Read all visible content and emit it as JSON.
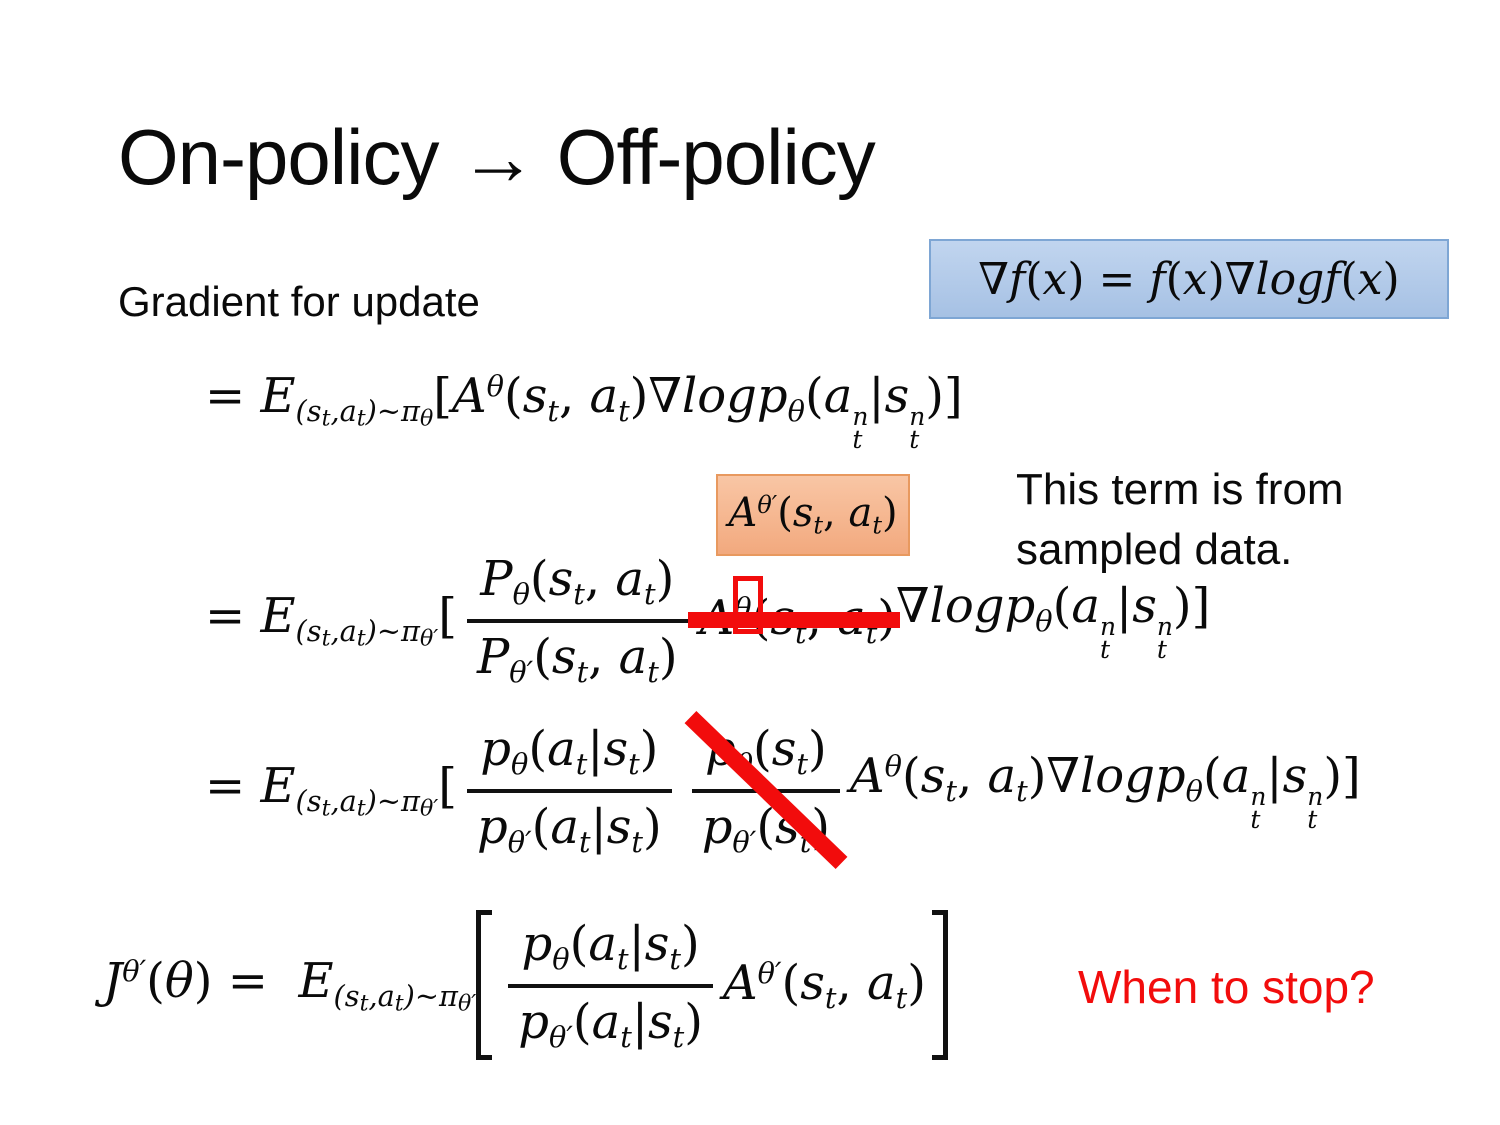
{
  "slide": {
    "title": "On-policy → Off-policy",
    "lead_in": "Gradient for update",
    "question": "When to stop?"
  },
  "note": {
    "line1": "This term is from",
    "line2": "sampled data."
  },
  "colors": {
    "accent_red": "#f20c0c",
    "blue_fill_top": "#c1d5ef",
    "blue_fill_bottom": "#a6c1e4",
    "blue_border": "#7ea6d4",
    "orange_fill_top": "#f9c6a5",
    "orange_fill_bottom": "#f2a97e",
    "orange_border": "#e8995f",
    "text_color": "#0a0a0a"
  },
  "identity_box": {
    "math": [
      [
        "i",
        "∇"
      ],
      [
        "i",
        "f"
      ],
      [
        "u",
        "("
      ],
      [
        "i",
        "x"
      ],
      [
        "u",
        ") = "
      ],
      [
        "i",
        "f"
      ],
      [
        "u",
        "("
      ],
      [
        "i",
        "x"
      ],
      [
        "u",
        ")"
      ],
      [
        "i",
        "∇"
      ],
      [
        "i",
        "logf"
      ],
      [
        "u",
        "("
      ],
      [
        "i",
        "x"
      ],
      [
        "u",
        ")"
      ]
    ]
  },
  "advantage_box": {
    "math": [
      [
        "i",
        "A"
      ],
      [
        "sup",
        "θ′"
      ],
      [
        "u",
        "("
      ],
      [
        "i",
        "s"
      ],
      [
        "sub",
        "t"
      ],
      [
        "u",
        ", "
      ],
      [
        "i",
        "a"
      ],
      [
        "sub",
        "t"
      ],
      [
        "u",
        ")"
      ]
    ]
  },
  "eq1": {
    "math": [
      [
        "u",
        "= "
      ],
      [
        "i",
        "E"
      ],
      [
        "sub",
        "("
      ],
      [
        "sub",
        "s"
      ],
      [
        "ssub",
        "t"
      ],
      [
        "sub",
        ",a"
      ],
      [
        "ssub",
        "t"
      ],
      [
        "sub",
        ")~"
      ],
      [
        "sub",
        "π"
      ],
      [
        "ssub",
        "θ"
      ],
      [
        "u",
        "["
      ],
      [
        "i",
        "A"
      ],
      [
        "sup",
        "θ"
      ],
      [
        "u",
        "("
      ],
      [
        "i",
        "s"
      ],
      [
        "sub",
        "t"
      ],
      [
        "u",
        ", "
      ],
      [
        "i",
        "a"
      ],
      [
        "sub",
        "t"
      ],
      [
        "u",
        ")"
      ],
      [
        "i",
        "∇"
      ],
      [
        "i",
        "logp"
      ],
      [
        "sub",
        "θ"
      ],
      [
        "u",
        "("
      ],
      [
        "i",
        "a"
      ],
      [
        "st",
        "n,t"
      ],
      [
        "u",
        "|"
      ],
      [
        "i",
        "s"
      ],
      [
        "st",
        "n,t"
      ],
      [
        "u",
        ")]"
      ]
    ]
  },
  "eq2": {
    "lead": [
      [
        "u",
        "= "
      ],
      [
        "i",
        "E"
      ],
      [
        "sub",
        "("
      ],
      [
        "sub",
        "s"
      ],
      [
        "ssub",
        "t"
      ],
      [
        "sub",
        ",a"
      ],
      [
        "ssub",
        "t"
      ],
      [
        "sub",
        ")~"
      ],
      [
        "sub",
        "π"
      ],
      [
        "ssub",
        "θ′"
      ],
      [
        "u",
        "["
      ]
    ],
    "frac_num": [
      [
        "i",
        "P"
      ],
      [
        "sub",
        "θ"
      ],
      [
        "u",
        "("
      ],
      [
        "i",
        "s"
      ],
      [
        "sub",
        "t"
      ],
      [
        "u",
        ", "
      ],
      [
        "i",
        "a"
      ],
      [
        "sub",
        "t"
      ],
      [
        "u",
        ")"
      ]
    ],
    "frac_den": [
      [
        "i",
        "P"
      ],
      [
        "sub",
        "θ′"
      ],
      [
        "u",
        "("
      ],
      [
        "i",
        "s"
      ],
      [
        "sub",
        "t"
      ],
      [
        "u",
        ", "
      ],
      [
        "i",
        "a"
      ],
      [
        "sub",
        "t"
      ],
      [
        "u",
        ")"
      ]
    ],
    "struck": [
      [
        "i",
        "A"
      ],
      [
        "sup",
        "θ"
      ],
      [
        "u",
        "("
      ],
      [
        "i",
        "s"
      ],
      [
        "sub",
        "t"
      ],
      [
        "u",
        ", "
      ],
      [
        "i",
        "a"
      ],
      [
        "sub",
        "t"
      ],
      [
        "u",
        ")"
      ]
    ],
    "tail": [
      [
        "i",
        "∇"
      ],
      [
        "i",
        "logp"
      ],
      [
        "sub",
        "θ"
      ],
      [
        "u",
        "("
      ],
      [
        "i",
        "a"
      ],
      [
        "st",
        "n,t"
      ],
      [
        "u",
        "|"
      ],
      [
        "i",
        "s"
      ],
      [
        "st",
        "n,t"
      ],
      [
        "u",
        ")]"
      ]
    ]
  },
  "eq3": {
    "lead": [
      [
        "u",
        "= "
      ],
      [
        "i",
        "E"
      ],
      [
        "sub",
        "("
      ],
      [
        "sub",
        "s"
      ],
      [
        "ssub",
        "t"
      ],
      [
        "sub",
        ",a"
      ],
      [
        "ssub",
        "t"
      ],
      [
        "sub",
        ")~"
      ],
      [
        "sub",
        "π"
      ],
      [
        "ssub",
        "θ′"
      ],
      [
        "u",
        "["
      ]
    ],
    "frac1_num": [
      [
        "i",
        "p"
      ],
      [
        "sub",
        "θ"
      ],
      [
        "u",
        "("
      ],
      [
        "i",
        "a"
      ],
      [
        "sub",
        "t"
      ],
      [
        "u",
        "|"
      ],
      [
        "i",
        "s"
      ],
      [
        "sub",
        "t"
      ],
      [
        "u",
        ")"
      ]
    ],
    "frac1_den": [
      [
        "i",
        "p"
      ],
      [
        "sub",
        "θ′"
      ],
      [
        "u",
        "("
      ],
      [
        "i",
        "a"
      ],
      [
        "sub",
        "t"
      ],
      [
        "u",
        "|"
      ],
      [
        "i",
        "s"
      ],
      [
        "sub",
        "t"
      ],
      [
        "u",
        ")"
      ]
    ],
    "frac2_num": [
      [
        "i",
        "p"
      ],
      [
        "sub",
        "θ"
      ],
      [
        "u",
        "("
      ],
      [
        "i",
        "s"
      ],
      [
        "sub",
        "t"
      ],
      [
        "u",
        ")"
      ]
    ],
    "frac2_den": [
      [
        "i",
        "p"
      ],
      [
        "sub",
        "θ′"
      ],
      [
        "u",
        "("
      ],
      [
        "i",
        "s"
      ],
      [
        "sub",
        "t"
      ],
      [
        "u",
        ")"
      ]
    ],
    "tail": [
      [
        "i",
        "A"
      ],
      [
        "sup",
        "θ"
      ],
      [
        "u",
        "("
      ],
      [
        "i",
        "s"
      ],
      [
        "sub",
        "t"
      ],
      [
        "u",
        ", "
      ],
      [
        "i",
        "a"
      ],
      [
        "sub",
        "t"
      ],
      [
        "u",
        ")"
      ],
      [
        "i",
        "∇"
      ],
      [
        "i",
        "logp"
      ],
      [
        "sub",
        "θ"
      ],
      [
        "u",
        "("
      ],
      [
        "i",
        "a"
      ],
      [
        "st",
        "n,t"
      ],
      [
        "u",
        "|"
      ],
      [
        "i",
        "s"
      ],
      [
        "st",
        "n,t"
      ],
      [
        "u",
        ")]"
      ]
    ]
  },
  "eq4": {
    "lhs": [
      [
        "i",
        "J"
      ],
      [
        "sup",
        "θ′"
      ],
      [
        "u",
        "("
      ],
      [
        "i",
        "θ"
      ],
      [
        "u",
        ") =  "
      ],
      [
        "i",
        "E"
      ],
      [
        "sub",
        "("
      ],
      [
        "sub",
        "s"
      ],
      [
        "ssub",
        "t"
      ],
      [
        "sub",
        ",a"
      ],
      [
        "ssub",
        "t"
      ],
      [
        "sub",
        ")~"
      ],
      [
        "sub",
        "π"
      ],
      [
        "ssub",
        "θ′"
      ]
    ],
    "frac_num": [
      [
        "i",
        "p"
      ],
      [
        "sub",
        "θ"
      ],
      [
        "u",
        "("
      ],
      [
        "i",
        "a"
      ],
      [
        "sub",
        "t"
      ],
      [
        "u",
        "|"
      ],
      [
        "i",
        "s"
      ],
      [
        "sub",
        "t"
      ],
      [
        "u",
        ")"
      ]
    ],
    "frac_den": [
      [
        "i",
        "p"
      ],
      [
        "sub",
        "θ′"
      ],
      [
        "u",
        "("
      ],
      [
        "i",
        "a"
      ],
      [
        "sub",
        "t"
      ],
      [
        "u",
        "|"
      ],
      [
        "i",
        "s"
      ],
      [
        "sub",
        "t"
      ],
      [
        "u",
        ")"
      ]
    ],
    "tail": [
      [
        "i",
        "A"
      ],
      [
        "sup",
        "θ′"
      ],
      [
        "u",
        "("
      ],
      [
        "i",
        "s"
      ],
      [
        "sub",
        "t"
      ],
      [
        "u",
        ", "
      ],
      [
        "i",
        "a"
      ],
      [
        "sub",
        "t"
      ],
      [
        "u",
        ")"
      ]
    ]
  }
}
